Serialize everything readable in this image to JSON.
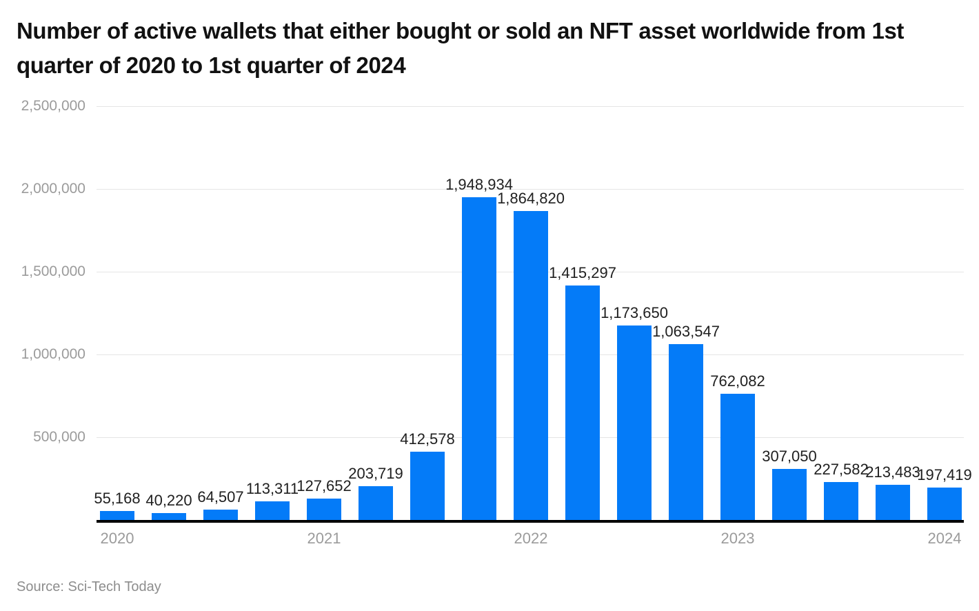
{
  "title": "Number of active wallets that either bought or sold an NFT asset worldwide from 1st quarter of 2020 to 1st quarter of 2024",
  "source": "Source: Sci-Tech Today",
  "chart_data": {
    "type": "bar",
    "title": "Number of active wallets that either bought or sold an NFT asset worldwide from 1st quarter of 2020 to 1st quarter of 2024",
    "categories": [
      "Q1 2020",
      "Q2 2020",
      "Q3 2020",
      "Q4 2020",
      "Q1 2021",
      "Q2 2021",
      "Q3 2021",
      "Q4 2021",
      "Q1 2022",
      "Q2 2022",
      "Q3 2022",
      "Q4 2022",
      "Q1 2023",
      "Q2 2023",
      "Q3 2023",
      "Q4 2023",
      "Q1 2024"
    ],
    "values": [
      55168,
      40220,
      64507,
      113311,
      127652,
      203719,
      412578,
      1948934,
      1864820,
      1415297,
      1173650,
      1063547,
      762082,
      307050,
      227582,
      213483,
      197419
    ],
    "value_labels": [
      "55,168",
      "40,220",
      "64,507",
      "113,311",
      "127,652",
      "203,719",
      "412,578",
      "1,948,934",
      "1,864,820",
      "1,415,297",
      "1,173,650",
      "1,063,547",
      "762,082",
      "307,050",
      "227,582",
      "213,483",
      "197,419"
    ],
    "x_ticks": [
      {
        "label": "2020",
        "bar": 0
      },
      {
        "label": "2021",
        "bar": 4
      },
      {
        "label": "2022",
        "bar": 8
      },
      {
        "label": "2023",
        "bar": 12
      },
      {
        "label": "2024",
        "bar": 16
      }
    ],
    "y_ticks": [
      500000,
      1000000,
      1500000,
      2000000,
      2500000
    ],
    "y_tick_labels": [
      "500,000",
      "1,000,000",
      "1,500,000",
      "2,000,000",
      "2,500,000"
    ],
    "ylim": [
      0,
      2500000
    ],
    "xlabel": "",
    "ylabel": "",
    "grid": true,
    "legend": false
  },
  "colors": {
    "bar": "#047bf8",
    "gridline": "#e5e5e5",
    "axis": "#000000",
    "tick_text": "#9b9b9b",
    "value_label_text": "#1f1f1f",
    "title_text": "#111111",
    "source_text": "#8d8d8d"
  }
}
